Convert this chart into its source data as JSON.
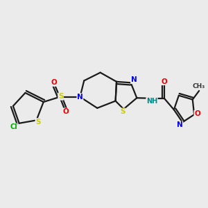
{
  "bg_color": "#ebebeb",
  "bond_color": "#1a1a1a",
  "atom_colors": {
    "N": "#0000ee",
    "S": "#cccc00",
    "O": "#ee0000",
    "Cl": "#00aa00",
    "C": "#1a1a1a",
    "H": "#008888"
  },
  "bg_hex": "#ebebeb"
}
